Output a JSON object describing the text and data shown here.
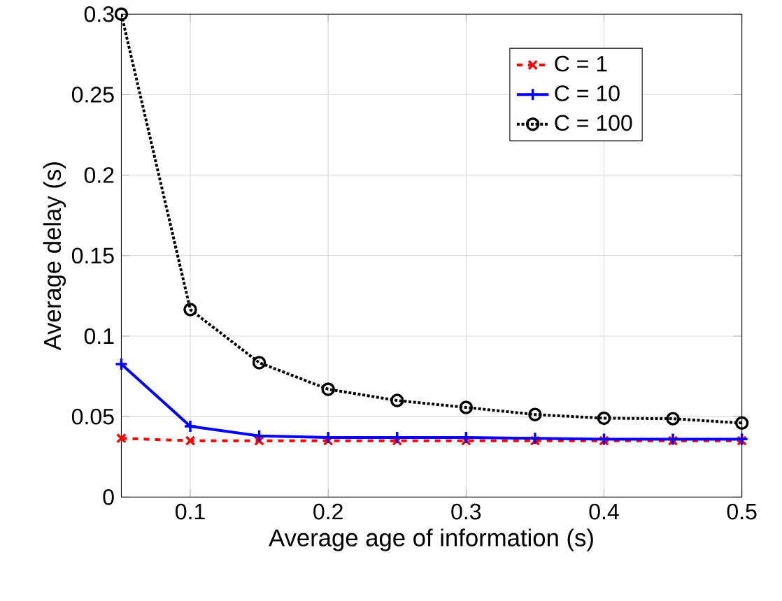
{
  "chart_data": {
    "type": "line",
    "xlabel": "Average age of information (s)",
    "ylabel": "Average delay (s)",
    "x": [
      0.05,
      0.1,
      0.15,
      0.2,
      0.25,
      0.3,
      0.35,
      0.4,
      0.45,
      0.5
    ],
    "series": [
      {
        "name": "C = 1",
        "color": "#ff0000",
        "line_style": "dashed",
        "marker": "cross",
        "values": [
          0.0365,
          0.035,
          0.035,
          0.035,
          0.035,
          0.035,
          0.035,
          0.035,
          0.035,
          0.035
        ]
      },
      {
        "name": "C = 10",
        "color": "#0000ff",
        "line_style": "solid",
        "marker": "plus",
        "values": [
          0.0826,
          0.044,
          0.038,
          0.037,
          0.037,
          0.037,
          0.0365,
          0.036,
          0.036,
          0.036
        ]
      },
      {
        "name": "C = 100",
        "color": "#000000",
        "line_style": "dotted",
        "marker": "circle",
        "values": [
          0.3,
          0.1165,
          0.0835,
          0.067,
          0.06,
          0.0557,
          0.0513,
          0.049,
          0.0487,
          0.046
        ]
      }
    ],
    "xlim": [
      0.05,
      0.5
    ],
    "ylim": [
      0,
      0.3
    ],
    "xticks": [
      0.1,
      0.2,
      0.3,
      0.4,
      0.5
    ],
    "yticks": [
      0,
      0.05,
      0.1,
      0.15,
      0.2,
      0.25,
      0.3
    ],
    "grid": true,
    "legend": "top right"
  }
}
